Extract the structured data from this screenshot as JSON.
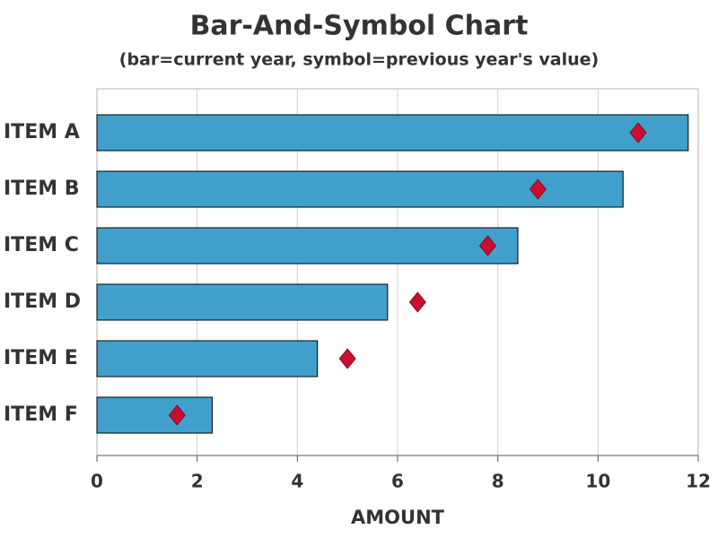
{
  "chart_data": {
    "type": "bar",
    "orientation": "horizontal",
    "title": "Bar-And-Symbol Chart",
    "subtitle": "(bar=current year, symbol=previous year's value)",
    "xlabel": "AMOUNT",
    "categories": [
      "ITEM A",
      "ITEM B",
      "ITEM C",
      "ITEM D",
      "ITEM E",
      "ITEM F"
    ],
    "values": [
      11.8,
      10.5,
      8.4,
      5.8,
      4.4,
      2.3
    ],
    "symbol_values": [
      10.8,
      8.8,
      7.8,
      6.4,
      5.0,
      1.6
    ],
    "bar_color": "#41a0cb",
    "symbol_color": "#c8102e",
    "symbol": "diamond",
    "xlim": [
      0,
      12
    ],
    "xticks": [
      0,
      2,
      4,
      6,
      8,
      10,
      12
    ],
    "grid": true
  }
}
